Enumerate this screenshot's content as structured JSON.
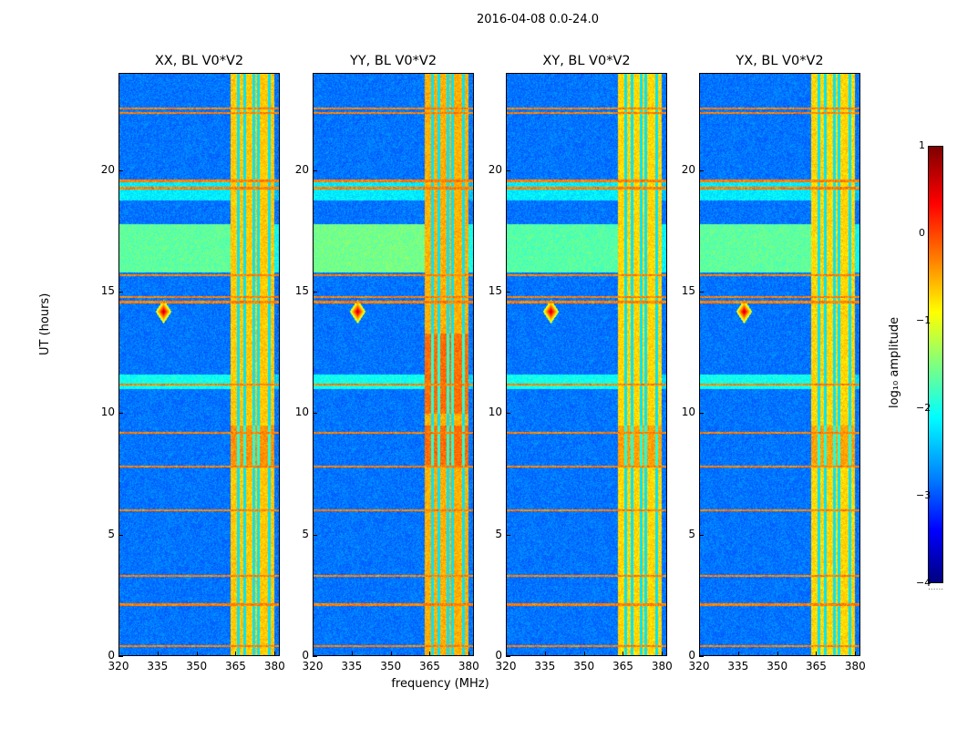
{
  "chart_data": {
    "type": "heatmap",
    "suptitle": "2016-04-08 0.0-24.0",
    "xlabel": "frequency (MHz)",
    "ylabel": "UT (hours)",
    "xlim": [
      320,
      382
    ],
    "ylim": [
      0,
      24
    ],
    "xticks": [
      "320",
      "335",
      "350",
      "365",
      "380"
    ],
    "yticks": [
      "0",
      "5",
      "10",
      "15",
      "20"
    ],
    "panels": [
      {
        "title": "XX, BL V0*V2",
        "band_strength": 0.55,
        "low_freq_strength": 0.25
      },
      {
        "title": "YY, BL V0*V2",
        "band_strength": 0.65,
        "low_freq_strength": 0.35
      },
      {
        "title": "XY, BL V0*V2",
        "band_strength": 0.5,
        "low_freq_strength": 0.2
      },
      {
        "title": "YX, BL V0*V2",
        "band_strength": 0.5,
        "low_freq_strength": 0.25
      }
    ],
    "colorbar": {
      "label": "log₁₀ amplitude",
      "range": [
        -4,
        1
      ],
      "ticks": [
        "1",
        "0",
        "−1",
        "−2",
        "−3",
        "−4"
      ],
      "colormap": "jet"
    },
    "features": {
      "band_freq_mhz": [
        363,
        380
      ],
      "band_dividers_mhz": [
        366,
        368.5,
        372,
        374,
        378
      ],
      "point_source_mhz": 337,
      "point_source_ut": 14.2,
      "rfi_lines_ut": [
        22.4,
        22.6,
        19.6,
        19.3,
        15.7,
        14.8,
        14.6,
        11.2,
        9.2,
        7.8,
        6.0,
        3.3,
        2.1,
        0.4
      ]
    }
  }
}
